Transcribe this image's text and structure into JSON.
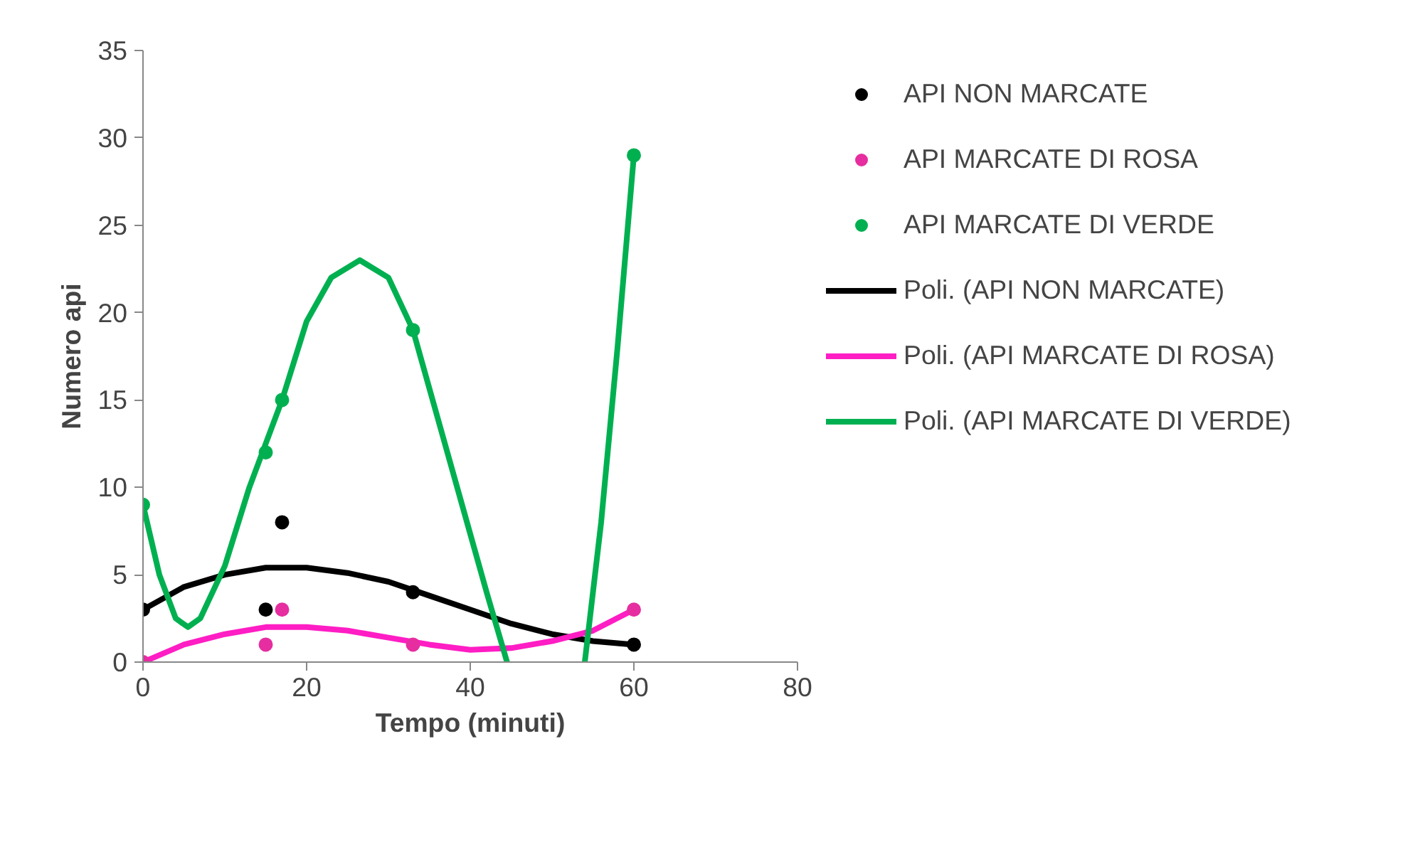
{
  "chart_data": {
    "type": "scatter",
    "xlabel": "Tempo (minuti)",
    "ylabel": "Numero api",
    "xlim": [
      0,
      80
    ],
    "ylim": [
      0,
      35
    ],
    "xticks": [
      0,
      20,
      40,
      60,
      80
    ],
    "yticks": [
      0,
      5,
      10,
      15,
      20,
      25,
      30,
      35
    ],
    "grid": false,
    "legend": "right",
    "marker": "circle",
    "x": [
      0,
      15,
      17,
      33,
      60
    ],
    "series": [
      {
        "name": "API NON MARCATE",
        "color": "#000000",
        "values": [
          3,
          3,
          8,
          4,
          1
        ]
      },
      {
        "name": "API MARCATE DI ROSA",
        "color": "#e62ea0",
        "values": [
          0,
          1,
          3,
          1,
          3
        ]
      },
      {
        "name": "API MARCATE DI VERDE",
        "color": "#00b050",
        "values": [
          9,
          12,
          15,
          19,
          29
        ]
      },
      {
        "name": "Poli. (API NON MARCATE)",
        "type": "line",
        "marker": "none",
        "color": "#000000",
        "x": [
          0,
          5,
          10,
          15,
          20,
          25,
          30,
          35,
          40,
          45,
          50,
          55,
          60
        ],
        "values": [
          3,
          4.3,
          5,
          5.4,
          5.4,
          5.1,
          4.6,
          3.8,
          3,
          2.2,
          1.6,
          1.2,
          1
        ]
      },
      {
        "name": "Poli. (API MARCATE DI ROSA)",
        "type": "line",
        "marker": "none",
        "color": "#ff1dc4",
        "x": [
          0,
          5,
          10,
          15,
          20,
          25,
          30,
          35,
          40,
          45,
          50,
          55,
          60
        ],
        "values": [
          0,
          1,
          1.6,
          2,
          2,
          1.8,
          1.4,
          1,
          0.7,
          0.8,
          1.2,
          1.8,
          3
        ]
      },
      {
        "name": "Poli. (API MARCATE DI VERDE)",
        "type": "line",
        "marker": "none",
        "color": "#00b050",
        "x": [
          0,
          2,
          4,
          5.5,
          7,
          10,
          13,
          15,
          17,
          20,
          23,
          26.5,
          30,
          33,
          36,
          39,
          42,
          44.5,
          49,
          54,
          56,
          58,
          60
        ],
        "values": [
          9,
          5,
          2.5,
          2,
          2.5,
          5.5,
          10,
          12.5,
          15,
          19.5,
          22,
          23,
          22,
          19,
          14,
          9,
          4,
          0,
          null,
          0,
          8,
          18,
          29
        ]
      }
    ]
  }
}
